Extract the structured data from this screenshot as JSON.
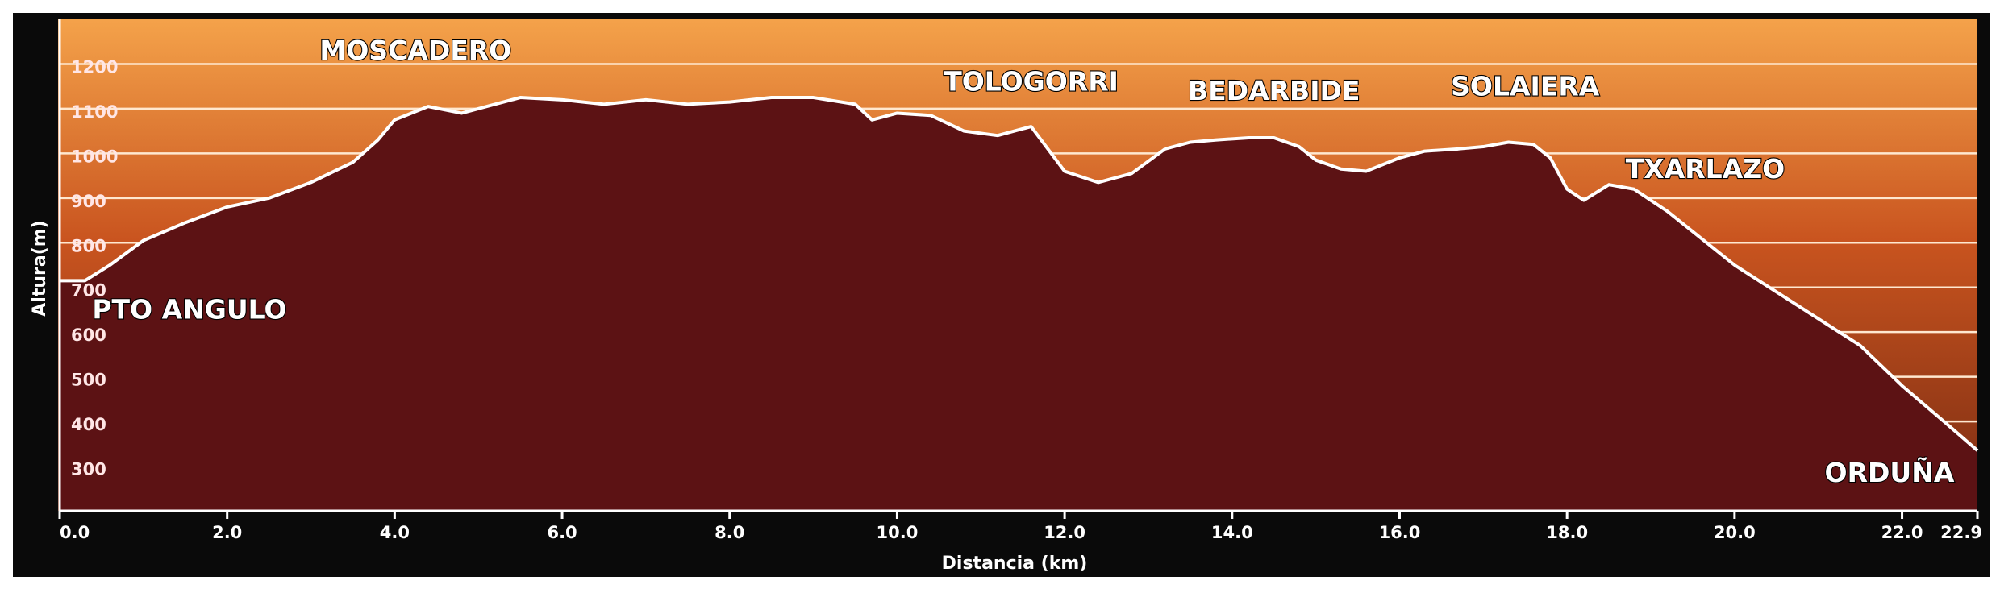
{
  "chart_data": {
    "type": "area",
    "xlabel": "Distancia  (km)",
    "ylabel": "Altura(m)",
    "xlim": [
      0,
      22.9
    ],
    "ylim": [
      200,
      1300
    ],
    "x_ticks": [
      "0.0",
      "2.0",
      "4.0",
      "6.0",
      "8.0",
      "10.0",
      "12.0",
      "14.0",
      "16.0",
      "18.0",
      "20.0",
      "22.0",
      "22.9"
    ],
    "y_ticks": [
      "300",
      "400",
      "500",
      "600",
      "700",
      "800",
      "900",
      "1000",
      "1100",
      "1200"
    ],
    "grid": true,
    "colors": {
      "fill": "#5c1214",
      "line": "#ffffff",
      "frame": "#0a0a0a",
      "band_top": "#f4a24a",
      "band_bottom": "#7a2c12"
    },
    "series": [
      {
        "x": [
          0.0,
          0.3,
          0.6,
          1.0,
          1.5,
          2.0,
          2.5,
          3.0,
          3.5,
          3.8,
          4.0,
          4.4,
          4.8,
          5.2,
          5.5,
          6.0,
          6.5,
          7.0,
          7.5,
          8.0,
          8.5,
          9.0,
          9.5,
          9.7,
          10.0,
          10.4,
          10.8,
          11.2,
          11.6,
          12.0,
          12.4,
          12.8,
          13.2,
          13.5,
          13.8,
          14.2,
          14.5,
          14.8,
          15.0,
          15.3,
          15.6,
          16.0,
          16.3,
          16.7,
          17.0,
          17.3,
          17.6,
          17.8,
          18.0,
          18.2,
          18.5,
          18.8,
          19.2,
          19.6,
          20.0,
          20.5,
          21.0,
          21.5,
          22.0,
          22.5,
          22.9
        ],
        "y": [
          715,
          715,
          750,
          805,
          845,
          880,
          900,
          935,
          980,
          1030,
          1075,
          1105,
          1090,
          1110,
          1125,
          1120,
          1110,
          1120,
          1110,
          1115,
          1125,
          1125,
          1110,
          1075,
          1090,
          1085,
          1050,
          1040,
          1060,
          960,
          935,
          955,
          1010,
          1025,
          1030,
          1035,
          1035,
          1015,
          985,
          965,
          960,
          990,
          1005,
          1010,
          1015,
          1025,
          1020,
          990,
          920,
          895,
          930,
          920,
          870,
          810,
          750,
          690,
          630,
          570,
          480,
          400,
          335
        ]
      }
    ],
    "annotations": [
      {
        "text": "MOSCADERO",
        "x": 4.25,
        "y": 1210
      },
      {
        "text": "TOLOGORRI",
        "x": 11.6,
        "y": 1140
      },
      {
        "text": "BEDARBIDE",
        "x": 14.5,
        "y": 1120
      },
      {
        "text": "SOLAIERA",
        "x": 17.5,
        "y": 1130
      },
      {
        "text": "TXARLAZO",
        "x": 19.65,
        "y": 945
      },
      {
        "text": "PTO ANGULO",
        "x": 1.55,
        "y": 630
      },
      {
        "text": "ORDUÑA",
        "x": 21.85,
        "y": 265
      }
    ]
  }
}
